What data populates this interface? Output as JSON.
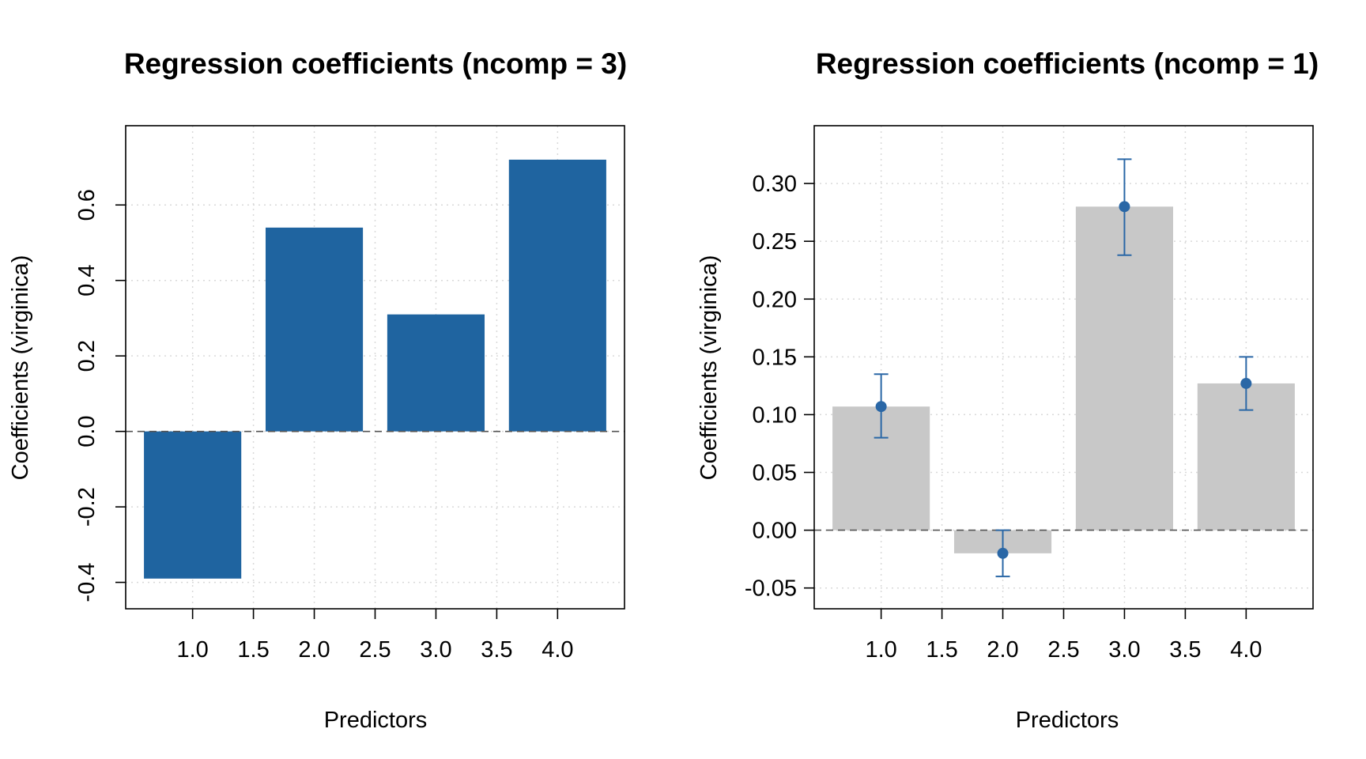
{
  "colors": {
    "bar_blue": "#1f64a0",
    "bar_grey": "#c8c8c8",
    "error_blue": "#2a67a6",
    "grid": "#d9d9d9",
    "zero_line": "#555555"
  },
  "chart_data": [
    {
      "type": "bar",
      "title": "Regression coefficients (ncomp = 3)",
      "xlabel": "Predictors",
      "ylabel": "Coefficients (virginica)",
      "x": [
        1,
        2,
        3,
        4
      ],
      "values": [
        -0.39,
        0.54,
        0.31,
        0.72
      ],
      "xlim": [
        0.45,
        4.55
      ],
      "ylim": [
        -0.47,
        0.81
      ],
      "xticks": [
        1.0,
        1.5,
        2.0,
        2.5,
        3.0,
        3.5,
        4.0
      ],
      "xtick_labels": [
        "1.0",
        "1.5",
        "2.0",
        "2.5",
        "3.0",
        "3.5",
        "4.0"
      ],
      "yticks": [
        -0.4,
        -0.2,
        0.0,
        0.2,
        0.4,
        0.6
      ],
      "ytick_labels": [
        "-0.4",
        "-0.2",
        "0.0",
        "0.2",
        "0.4",
        "0.6"
      ],
      "ytick_rotated": true,
      "bar_color": "#1f64a0",
      "grid": true,
      "zero_line": true
    },
    {
      "type": "bar",
      "title": "Regression coefficients (ncomp = 1)",
      "xlabel": "Predictors",
      "ylabel": "Coefficients (virginica)",
      "x": [
        1,
        2,
        3,
        4
      ],
      "values": [
        0.107,
        -0.02,
        0.28,
        0.127
      ],
      "error_low": [
        0.08,
        -0.04,
        0.238,
        0.104
      ],
      "error_high": [
        0.135,
        0.0,
        0.321,
        0.15
      ],
      "xlim": [
        0.45,
        4.55
      ],
      "ylim": [
        -0.068,
        0.35
      ],
      "xticks": [
        1.0,
        1.5,
        2.0,
        2.5,
        3.0,
        3.5,
        4.0
      ],
      "xtick_labels": [
        "1.0",
        "1.5",
        "2.0",
        "2.5",
        "3.0",
        "3.5",
        "4.0"
      ],
      "yticks": [
        -0.05,
        0.0,
        0.05,
        0.1,
        0.15,
        0.2,
        0.25,
        0.3
      ],
      "ytick_labels": [
        "-0.05",
        "0.00",
        "0.05",
        "0.10",
        "0.15",
        "0.20",
        "0.25",
        "0.30"
      ],
      "ytick_rotated": false,
      "bar_color": "#c8c8c8",
      "error_color": "#2a67a6",
      "grid": true,
      "zero_line": true
    }
  ]
}
